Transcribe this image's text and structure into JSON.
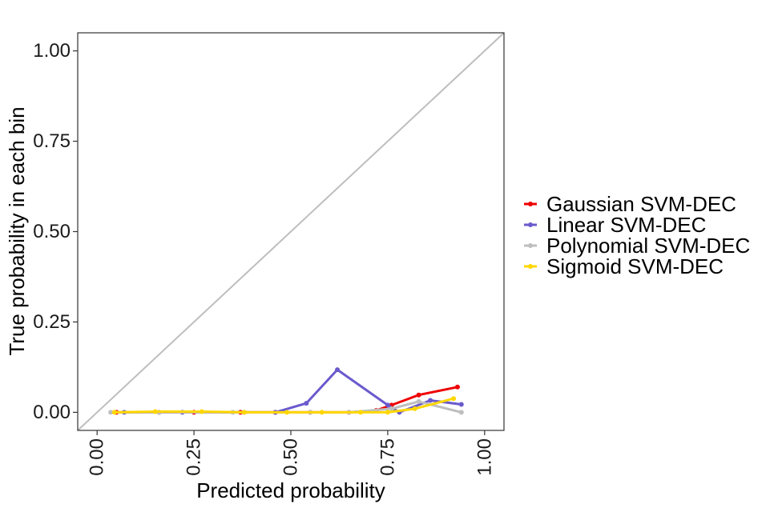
{
  "chart_data": {
    "type": "line",
    "xlabel": "Predicted probability",
    "ylabel": "True probability in each bin",
    "xlim": [
      -0.05,
      1.05
    ],
    "ylim": [
      -0.05,
      1.05
    ],
    "x_ticks": [
      0.0,
      0.25,
      0.5,
      0.75,
      1.0
    ],
    "x_tick_labels": [
      "0.00",
      "0.25",
      "0.50",
      "0.75",
      "1.00"
    ],
    "y_ticks": [
      0.0,
      0.25,
      0.5,
      0.75,
      1.0
    ],
    "y_tick_labels": [
      "0.00",
      "0.25",
      "0.50",
      "0.75",
      "1.00"
    ],
    "grid": false,
    "legend_position": "right",
    "reference_line": {
      "x": [
        -0.05,
        1.05
      ],
      "y": [
        -0.05,
        1.05
      ],
      "color": "#bebebe"
    },
    "series": [
      {
        "name": "Gaussian SVM-DEC",
        "color": "#ee0000",
        "x": [
          0.05,
          0.16,
          0.25,
          0.37,
          0.46,
          0.55,
          0.65,
          0.72,
          0.76,
          0.83,
          0.93
        ],
        "y": [
          0.0,
          0.0,
          0.0,
          0.0,
          0.0,
          0.0,
          0.0,
          0.005,
          0.02,
          0.048,
          0.07
        ]
      },
      {
        "name": "Linear SVM-DEC",
        "color": "#6a5acd",
        "x": [
          0.07,
          0.22,
          0.38,
          0.46,
          0.54,
          0.62,
          0.75,
          0.78,
          0.86,
          0.94
        ],
        "y": [
          0.0,
          0.0,
          0.0,
          0.0,
          0.025,
          0.118,
          0.02,
          0.0,
          0.033,
          0.022
        ]
      },
      {
        "name": "Polynomial SVM-DEC",
        "color": "#bebebe",
        "x": [
          0.035,
          0.16,
          0.35,
          0.55,
          0.65,
          0.76,
          0.83,
          0.94
        ],
        "y": [
          0.0,
          0.0,
          0.0,
          0.0,
          0.0,
          0.01,
          0.03,
          0.0
        ]
      },
      {
        "name": "Sigmoid SVM-DEC",
        "color": "#ffd700",
        "x": [
          0.045,
          0.15,
          0.27,
          0.38,
          0.49,
          0.58,
          0.68,
          0.75,
          0.82,
          0.92
        ],
        "y": [
          0.0,
          0.002,
          0.002,
          0.0,
          0.0,
          0.0,
          0.0,
          0.0,
          0.01,
          0.038
        ]
      }
    ]
  }
}
